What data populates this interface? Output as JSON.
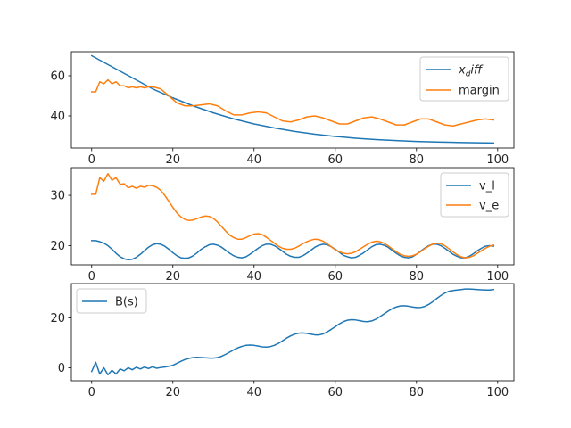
{
  "chart_data": [
    {
      "type": "line",
      "title": "",
      "xlabel": "",
      "ylabel": "",
      "xlim": [
        -5,
        104
      ],
      "ylim": [
        24,
        72
      ],
      "xticks": [
        0,
        20,
        40,
        60,
        80,
        100
      ],
      "yticks": [
        40,
        60
      ],
      "legend_placement": "upper-right",
      "series": [
        {
          "name": "x_diff",
          "legend_label": {
            "base": "x",
            "sub": "d",
            "rest": "iff"
          },
          "color": "#1f77b4",
          "x": [
            0,
            5,
            10,
            15,
            20,
            25,
            30,
            35,
            40,
            45,
            50,
            55,
            60,
            65,
            70,
            75,
            80,
            85,
            90,
            95,
            99
          ],
          "y": [
            70,
            64.5,
            59,
            53.5,
            49,
            45,
            41.5,
            38.5,
            36,
            34,
            32.3,
            30.9,
            29.8,
            28.9,
            28.2,
            27.7,
            27.3,
            27.0,
            26.8,
            26.6,
            26.5
          ]
        },
        {
          "name": "margin",
          "color": "#ff7f0e",
          "x": [
            0,
            1,
            2,
            3,
            4,
            5,
            6,
            7,
            8,
            9,
            10,
            11,
            12,
            13,
            14,
            15,
            17,
            19,
            21,
            23,
            25,
            27,
            29,
            31,
            33,
            35,
            37,
            39,
            41,
            43,
            45,
            47,
            49,
            51,
            53,
            55,
            57,
            59,
            61,
            63,
            65,
            67,
            69,
            71,
            73,
            75,
            77,
            79,
            81,
            83,
            85,
            87,
            89,
            91,
            93,
            95,
            97,
            99
          ],
          "y": [
            52,
            52,
            57,
            56,
            58,
            56,
            57,
            55,
            55,
            54,
            54.5,
            54,
            54.5,
            54,
            54.5,
            54.5,
            53.5,
            50,
            46.5,
            45,
            45,
            45.5,
            46,
            45,
            42.5,
            40.5,
            40.5,
            41.5,
            42,
            41.5,
            39.5,
            37.5,
            37,
            38,
            39.5,
            40,
            39,
            37.5,
            36,
            36,
            37.5,
            39,
            39.5,
            38.5,
            37,
            35.5,
            35.5,
            37,
            38.5,
            38.5,
            37,
            35.5,
            35,
            36,
            37,
            38,
            38.5,
            38
          ]
        }
      ]
    },
    {
      "type": "line",
      "title": "",
      "xlabel": "",
      "ylabel": "",
      "xlim": [
        -5,
        104
      ],
      "ylim": [
        16.2,
        35.5
      ],
      "xticks": [
        0,
        20,
        40,
        60,
        80,
        100
      ],
      "yticks": [
        20,
        30
      ],
      "legend_placement": "upper-right",
      "series": [
        {
          "name": "v_l",
          "color": "#1f77b4",
          "x": [
            0,
            1,
            2,
            3,
            4,
            5,
            6,
            7,
            8,
            9,
            10,
            11,
            12,
            13,
            14,
            15,
            16,
            17,
            18,
            19,
            20,
            21,
            22,
            23,
            24,
            25,
            26,
            27,
            28,
            29,
            30,
            31,
            32,
            33,
            34,
            35,
            36,
            37,
            38,
            39,
            40,
            41,
            42,
            43,
            44,
            45,
            46,
            47,
            48,
            49,
            50,
            51,
            52,
            53,
            54,
            55,
            56,
            57,
            58,
            59,
            60,
            61,
            62,
            63,
            64,
            65,
            66,
            67,
            68,
            69,
            70,
            71,
            72,
            73,
            74,
            75,
            76,
            77,
            78,
            79,
            80,
            81,
            82,
            83,
            84,
            85,
            86,
            87,
            88,
            89,
            90,
            91,
            92,
            93,
            94,
            95,
            96,
            97,
            98,
            99
          ],
          "y": [
            21.0,
            21.0,
            20.8,
            20.5,
            20.0,
            19.3,
            18.5,
            17.8,
            17.4,
            17.2,
            17.3,
            17.7,
            18.3,
            19.0,
            19.7,
            20.2,
            20.4,
            20.3,
            19.9,
            19.3,
            18.6,
            18.0,
            17.6,
            17.5,
            17.6,
            18.0,
            18.6,
            19.3,
            19.8,
            20.2,
            20.3,
            20.1,
            19.7,
            19.1,
            18.5,
            18.0,
            17.7,
            17.6,
            17.8,
            18.3,
            18.9,
            19.5,
            20.0,
            20.3,
            20.3,
            20.0,
            19.5,
            18.9,
            18.3,
            17.9,
            17.7,
            17.7,
            18.0,
            18.5,
            19.1,
            19.7,
            20.1,
            20.3,
            20.2,
            19.8,
            19.3,
            18.7,
            18.1,
            17.8,
            17.6,
            17.7,
            18.1,
            18.6,
            19.2,
            19.8,
            20.2,
            20.3,
            20.1,
            19.7,
            19.1,
            18.5,
            18.0,
            17.7,
            17.6,
            17.8,
            18.3,
            18.9,
            19.5,
            20.0,
            20.3,
            20.3,
            20.0,
            19.5,
            18.9,
            18.3,
            17.9,
            17.6,
            17.6,
            17.9,
            18.4,
            19.0,
            19.5,
            19.9,
            20.0,
            19.9
          ]
        },
        {
          "name": "v_e",
          "color": "#ff7f0e",
          "x": [
            0,
            1,
            2,
            3,
            4,
            5,
            6,
            7,
            8,
            9,
            10,
            11,
            12,
            13,
            14,
            15,
            16,
            17,
            18,
            19,
            20,
            21,
            22,
            23,
            24,
            25,
            26,
            27,
            28,
            29,
            30,
            31,
            32,
            33,
            34,
            35,
            36,
            37,
            38,
            39,
            40,
            41,
            42,
            43,
            44,
            45,
            46,
            47,
            48,
            49,
            50,
            51,
            52,
            53,
            54,
            55,
            56,
            57,
            58,
            59,
            60,
            61,
            62,
            63,
            64,
            65,
            66,
            67,
            68,
            69,
            70,
            71,
            72,
            73,
            74,
            75,
            76,
            77,
            78,
            79,
            80,
            81,
            82,
            83,
            84,
            85,
            86,
            87,
            88,
            89,
            90,
            91,
            92,
            93,
            94,
            95,
            96,
            97,
            98,
            99
          ],
          "y": [
            30.2,
            30.2,
            33.5,
            32.8,
            34.3,
            33.0,
            33.5,
            32.2,
            32.3,
            31.5,
            31.8,
            31.4,
            31.8,
            31.6,
            32.0,
            31.9,
            31.6,
            31.0,
            30.0,
            28.8,
            27.6,
            26.5,
            25.7,
            25.2,
            25.0,
            25.1,
            25.4,
            25.7,
            25.9,
            25.8,
            25.4,
            24.7,
            23.8,
            22.9,
            22.1,
            21.6,
            21.3,
            21.3,
            21.6,
            22.0,
            22.3,
            22.4,
            22.2,
            21.7,
            21.1,
            20.5,
            19.9,
            19.5,
            19.3,
            19.3,
            19.5,
            19.9,
            20.4,
            20.8,
            21.1,
            21.3,
            21.2,
            20.9,
            20.4,
            19.8,
            19.2,
            18.8,
            18.5,
            18.4,
            18.5,
            18.8,
            19.3,
            19.8,
            20.3,
            20.7,
            20.9,
            20.8,
            20.5,
            20.0,
            19.4,
            18.8,
            18.3,
            18.0,
            17.9,
            18.0,
            18.3,
            18.8,
            19.4,
            19.9,
            20.3,
            20.5,
            20.4,
            20.0,
            19.4,
            18.8,
            18.2,
            17.8,
            17.6,
            17.7,
            18.0,
            18.5,
            19.0,
            19.5,
            19.9,
            20.1
          ]
        }
      ]
    },
    {
      "type": "line",
      "title": "",
      "xlabel": "",
      "ylabel": "",
      "xlim": [
        -5,
        104
      ],
      "ylim": [
        -5.2,
        33.8
      ],
      "xticks": [
        0,
        20,
        40,
        60,
        80,
        100
      ],
      "yticks": [
        0,
        20
      ],
      "legend_placement": "upper-left",
      "series": [
        {
          "name": "B(s)",
          "color": "#1f77b4",
          "x": [
            0,
            1,
            2,
            3,
            4,
            5,
            6,
            7,
            8,
            9,
            10,
            11,
            12,
            13,
            14,
            15,
            16,
            17,
            18,
            19,
            20,
            21,
            22,
            23,
            24,
            25,
            26,
            27,
            28,
            29,
            30,
            31,
            32,
            33,
            34,
            35,
            36,
            37,
            38,
            39,
            40,
            41,
            42,
            43,
            44,
            45,
            46,
            47,
            48,
            49,
            50,
            51,
            52,
            53,
            54,
            55,
            56,
            57,
            58,
            59,
            60,
            61,
            62,
            63,
            64,
            65,
            66,
            67,
            68,
            69,
            70,
            71,
            72,
            73,
            74,
            75,
            76,
            77,
            78,
            79,
            80,
            81,
            82,
            83,
            84,
            85,
            86,
            87,
            88,
            89,
            90,
            91,
            92,
            93,
            94,
            95,
            96,
            97,
            98,
            99
          ],
          "y": [
            -1.5,
            2.2,
            -2.5,
            0.0,
            -2.8,
            -1.0,
            -2.5,
            -0.5,
            -1.2,
            0.0,
            -0.8,
            0.2,
            -0.5,
            0.3,
            -0.3,
            0.4,
            -0.2,
            0.1,
            0.3,
            0.6,
            1.0,
            1.8,
            2.6,
            3.3,
            3.8,
            4.1,
            4.2,
            4.1,
            4.0,
            3.9,
            3.9,
            4.1,
            4.6,
            5.4,
            6.3,
            7.2,
            8.0,
            8.6,
            9.0,
            9.1,
            9.0,
            8.7,
            8.4,
            8.3,
            8.5,
            9.0,
            9.8,
            10.8,
            11.9,
            12.8,
            13.5,
            13.9,
            14.0,
            13.8,
            13.5,
            13.2,
            13.2,
            13.6,
            14.4,
            15.4,
            16.5,
            17.6,
            18.5,
            19.1,
            19.3,
            19.2,
            18.9,
            18.6,
            18.5,
            18.8,
            19.5,
            20.5,
            21.6,
            22.7,
            23.7,
            24.4,
            24.8,
            24.9,
            24.7,
            24.4,
            24.2,
            24.2,
            24.6,
            25.4,
            26.5,
            27.8,
            29.0,
            30.0,
            30.7,
            31.0,
            31.2,
            31.4,
            31.6,
            31.6,
            31.5,
            31.4,
            31.3,
            31.2,
            31.2,
            31.4
          ]
        }
      ]
    }
  ]
}
